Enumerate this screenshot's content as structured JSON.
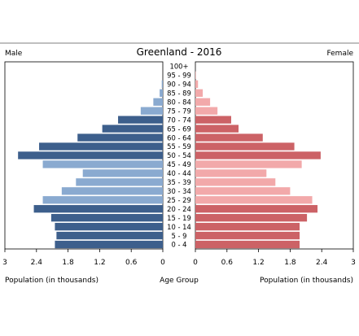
{
  "chart_data": {
    "type": "bar",
    "title": "Greenland - 2016",
    "male_label": "Male",
    "female_label": "Female",
    "left_xlabel": "Population (in thousands)",
    "right_xlabel": "Population (in thousands)",
    "center_label": "Age Group",
    "xlim": [
      0,
      3
    ],
    "left_ticks": [
      "3",
      "2.4",
      "1.8",
      "1.2",
      "0.6",
      "0"
    ],
    "right_ticks": [
      "0",
      "0.6",
      "1.2",
      "1.8",
      "2.4",
      "3"
    ],
    "categories": [
      "0 - 4",
      "5 - 9",
      "10 - 14",
      "15 - 19",
      "20 - 24",
      "25 - 29",
      "30 - 34",
      "35 - 39",
      "40 - 44",
      "45 - 49",
      "50 - 54",
      "55 - 59",
      "60 - 64",
      "65 - 69",
      "70 - 74",
      "75 - 79",
      "80 - 84",
      "85 - 89",
      "90 - 94",
      "95 - 99",
      "100+"
    ],
    "series": [
      {
        "name": "Male",
        "values": [
          2.05,
          2.02,
          2.05,
          2.12,
          2.45,
          2.28,
          1.92,
          1.65,
          1.52,
          2.28,
          2.75,
          2.35,
          1.62,
          1.15,
          0.85,
          0.42,
          0.18,
          0.06,
          0.02,
          0.0,
          0.0
        ]
      },
      {
        "name": "Female",
        "values": [
          1.98,
          1.98,
          1.98,
          2.12,
          2.32,
          2.22,
          1.8,
          1.52,
          1.35,
          2.02,
          2.38,
          1.88,
          1.28,
          0.82,
          0.68,
          0.42,
          0.28,
          0.14,
          0.05,
          0.01,
          0.0
        ]
      }
    ],
    "colors": {
      "male_dark": "#3d5f8c",
      "male_light": "#8aaad0",
      "female_dark": "#cc6266",
      "female_light": "#f2a9aa",
      "axis": "#000000"
    }
  }
}
